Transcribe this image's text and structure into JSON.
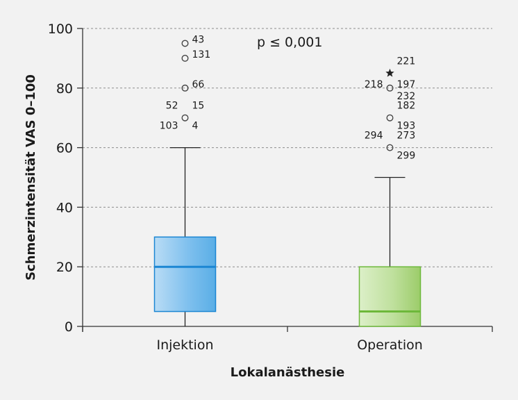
{
  "chart_data": {
    "type": "boxplot",
    "xlabel": "Lokalanästhesie",
    "ylabel": "Schmerzintensität VAS 0–100",
    "ylim": [
      0,
      100
    ],
    "yticks": [
      0,
      20,
      40,
      60,
      80,
      100
    ],
    "grid": "horizontal dashed",
    "annotation": "p ≤ 0,001",
    "categories": [
      "Injektion",
      "Operation"
    ],
    "boxes": [
      {
        "name": "Injektion",
        "color": "#5aaee6",
        "median_color": "#1b86d3",
        "min": 0,
        "q1": 5,
        "median": 20,
        "q3": 30,
        "max": 60,
        "outliers": [
          {
            "value": 95,
            "marker": "circle",
            "labels": [
              {
                "text": "43",
                "side": "right"
              }
            ]
          },
          {
            "value": 90,
            "marker": "circle",
            "labels": [
              {
                "text": "131",
                "side": "right"
              }
            ]
          },
          {
            "value": 80,
            "marker": "circle",
            "labels": [
              {
                "text": "66",
                "side": "right"
              }
            ]
          },
          {
            "value": 70,
            "marker": "circle",
            "labels": [
              {
                "text": "52",
                "side": "upper-left"
              },
              {
                "text": "15",
                "side": "upper-right"
              },
              {
                "text": "103",
                "side": "lower-left"
              },
              {
                "text": "4",
                "side": "lower-right"
              }
            ]
          }
        ]
      },
      {
        "name": "Operation",
        "color": "#9ccc6a",
        "median_color": "#6db83a",
        "min": 0,
        "q1": 0,
        "median": 5,
        "q3": 20,
        "max": 50,
        "outliers": [
          {
            "value": 85,
            "marker": "star",
            "labels": [
              {
                "text": "221",
                "side": "upper-right"
              }
            ]
          },
          {
            "value": 80,
            "marker": "circle",
            "labels": [
              {
                "text": "218",
                "side": "left"
              },
              {
                "text": "197",
                "side": "right"
              },
              {
                "text": "232",
                "side": "lower-right"
              }
            ]
          },
          {
            "value": 70,
            "marker": "circle",
            "labels": [
              {
                "text": "182",
                "side": "upper-right"
              },
              {
                "text": "193",
                "side": "lower-right"
              }
            ]
          },
          {
            "value": 60,
            "marker": "circle",
            "labels": [
              {
                "text": "294",
                "side": "upper-left"
              },
              {
                "text": "273",
                "side": "upper-right"
              },
              {
                "text": "299",
                "side": "lower-right"
              }
            ]
          }
        ]
      }
    ]
  }
}
